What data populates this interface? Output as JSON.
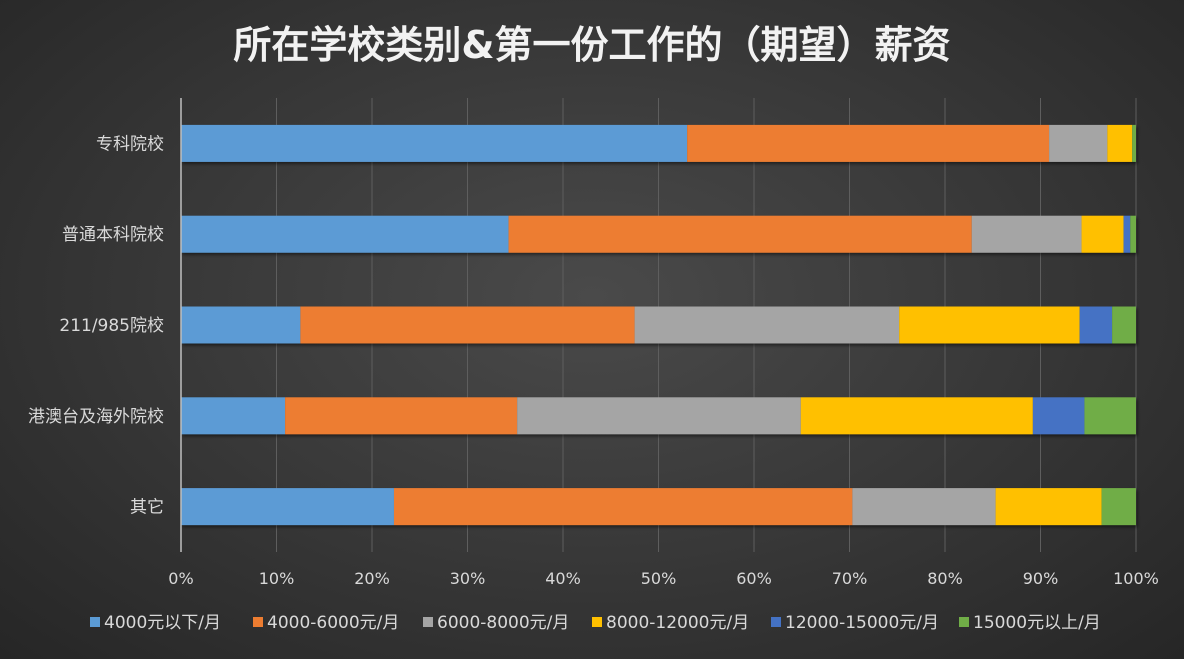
{
  "chart_data": {
    "type": "bar",
    "orientation": "horizontal",
    "stacked": "percent",
    "title": "所在学校类别&第一份工作的（期望）薪资",
    "categories": [
      "专科院校",
      "普通本科院校",
      "211/985院校",
      "港澳台及海外院校",
      "其它"
    ],
    "series": [
      {
        "name": "4000元以下/月",
        "color": "#5b9bd5",
        "values": [
          53.0,
          34.3,
          12.5,
          10.9,
          22.3
        ]
      },
      {
        "name": "4000-6000元/月",
        "color": "#ed7d31",
        "values": [
          37.9,
          48.5,
          35.0,
          24.3,
          48.0
        ]
      },
      {
        "name": "6000-8000元/月",
        "color": "#a5a5a5",
        "values": [
          6.1,
          11.5,
          27.7,
          29.7,
          15.0
        ]
      },
      {
        "name": "8000-12000元/月",
        "color": "#ffc000",
        "values": [
          2.6,
          4.4,
          18.9,
          24.3,
          11.1
        ]
      },
      {
        "name": "12000-15000元/月",
        "color": "#4472c4",
        "values": [
          0.0,
          0.7,
          3.4,
          5.4,
          0.0
        ]
      },
      {
        "name": "15000元以上/月",
        "color": "#70ad47",
        "values": [
          0.4,
          0.6,
          2.5,
          5.4,
          3.6
        ]
      }
    ],
    "x_ticks": [
      "0%",
      "10%",
      "20%",
      "30%",
      "40%",
      "50%",
      "60%",
      "70%",
      "80%",
      "90%",
      "100%"
    ],
    "xlim": [
      0,
      100
    ],
    "xlabel": "",
    "ylabel": "",
    "grid": true,
    "legend_position": "bottom"
  }
}
